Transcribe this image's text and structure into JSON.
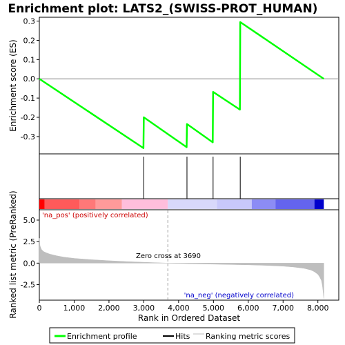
{
  "chart_data": {
    "type": "line",
    "title": "Enrichment plot: LATS2_(SWISS-PROT_HUMAN)",
    "es_panel": {
      "ylabel": "Enrichment score (ES)",
      "ylim": [
        -0.39,
        0.32
      ],
      "yticks": [
        0.3,
        0.2,
        0.1,
        0.0,
        -0.1,
        -0.2,
        -0.3
      ],
      "ytick_labels": [
        "0.3",
        "0.2",
        "0.1",
        "0.0",
        "-0.1",
        "-0.2",
        "-0.3"
      ],
      "series": [
        {
          "name": "Enrichment profile",
          "color": "#00ff00",
          "x": [
            0,
            2990,
            3000,
            4230,
            4240,
            4980,
            4990,
            5760,
            5770,
            8170
          ],
          "y": [
            0.0,
            -0.36,
            -0.2,
            -0.355,
            -0.235,
            -0.33,
            -0.068,
            -0.16,
            0.295,
            0.0
          ]
        }
      ]
    },
    "hits": {
      "name": "Hits",
      "positions": [
        3000,
        4240,
        4990,
        5770
      ]
    },
    "rank_panel": {
      "ylabel": "Ranked list metric (PreRanked)",
      "xlabel": "Rank in Ordered Dataset",
      "ylim": [
        -4.3,
        6.2
      ],
      "yticks": [
        5.0,
        2.5,
        0.0,
        -2.5
      ],
      "ytick_labels": [
        "5.0",
        "2.5",
        "0.0",
        "-2.5"
      ],
      "xlim": [
        0,
        8600
      ],
      "xticks": [
        0,
        1000,
        2000,
        3000,
        4000,
        5000,
        6000,
        7000,
        8000
      ],
      "xtick_labels": [
        "0",
        "1,000",
        "2,000",
        "3,000",
        "4,000",
        "5,000",
        "6,000",
        "7,000",
        "8,000"
      ],
      "metric_points": {
        "x": [
          0,
          20,
          60,
          120,
          200,
          300,
          400,
          500,
          700,
          1000,
          1500,
          2000,
          2500,
          3000,
          3690,
          4500,
          5000,
          5500,
          6000,
          6500,
          7000,
          7300,
          7600,
          7800,
          7900,
          8000,
          8050,
          8100,
          8130,
          8150,
          8170
        ],
        "y": [
          2.9,
          2.0,
          1.6,
          1.35,
          1.2,
          1.05,
          0.95,
          0.85,
          0.7,
          0.55,
          0.4,
          0.28,
          0.18,
          0.1,
          0.0,
          -0.08,
          -0.12,
          -0.16,
          -0.2,
          -0.26,
          -0.35,
          -0.45,
          -0.6,
          -0.8,
          -1.0,
          -1.3,
          -1.6,
          -2.0,
          -2.6,
          -3.3,
          -4.1
        ]
      },
      "zero_cross_rank": 3690,
      "zero_cross_label": "Zero cross at 3690",
      "pos_label": "'na_pos' (positively correlated)",
      "neg_label": "'na_neg' (negatively correlated)",
      "pos_color": "#cc0000",
      "neg_color": "#0000cc"
    },
    "color_bar": [
      {
        "start": 0,
        "end": 150,
        "color": "#ff0000"
      },
      {
        "start": 150,
        "end": 1150,
        "color": "#ff5a5a"
      },
      {
        "start": 1150,
        "end": 1620,
        "color": "#ff7878"
      },
      {
        "start": 1620,
        "end": 2370,
        "color": "#ff9a9a"
      },
      {
        "start": 2370,
        "end": 3690,
        "color": "#ffbedc"
      },
      {
        "start": 3690,
        "end": 5100,
        "color": "#d8d8fa"
      },
      {
        "start": 5100,
        "end": 6100,
        "color": "#c8c8fa"
      },
      {
        "start": 6100,
        "end": 6780,
        "color": "#8c8cf5"
      },
      {
        "start": 6780,
        "end": 7900,
        "color": "#6464ee"
      },
      {
        "start": 7900,
        "end": 8170,
        "color": "#0000cc"
      }
    ],
    "legend": {
      "items": [
        {
          "label": "Enrichment profile",
          "color": "#00ff00"
        },
        {
          "label": "Hits",
          "color": "#000000"
        },
        {
          "label": "Ranking metric scores",
          "color": "#bebebe"
        }
      ],
      "placement": "bottom"
    }
  }
}
